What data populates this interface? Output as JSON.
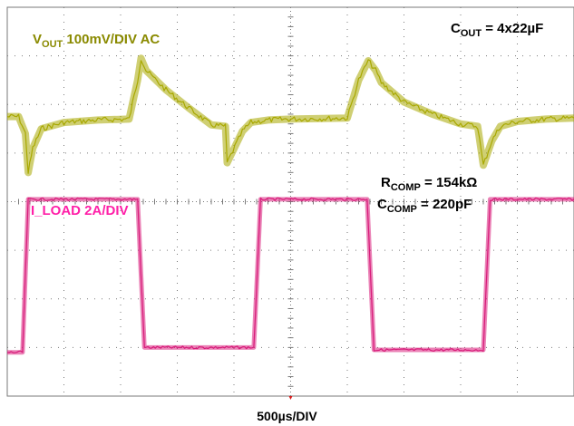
{
  "chart_data": {
    "type": "line",
    "title": "",
    "xlabel": "500µs/DIV",
    "ylabel": "",
    "x_divisions": 10,
    "y_divisions": 8,
    "grid": true,
    "time_per_div_us": 500,
    "series": [
      {
        "name": "V_OUT",
        "label_main": "V",
        "label_sub": "OUT",
        "label_rest": " 100mV/DIV AC",
        "color": "#a8a800",
        "units": "divisions",
        "x_div": [
          0.0,
          0.2,
          0.32,
          0.37,
          0.45,
          0.6,
          1.0,
          1.6,
          2.15,
          2.3,
          2.36,
          2.45,
          2.8,
          3.2,
          3.6,
          3.85,
          3.88,
          4.15,
          4.3,
          4.6,
          5.0,
          6.0,
          6.2,
          6.37,
          6.5,
          6.6,
          7.0,
          7.5,
          8.0,
          8.3,
          8.4,
          8.55,
          8.7,
          9.0,
          9.5,
          10.0
        ],
        "y_div": [
          5.75,
          5.75,
          5.4,
          4.6,
          5.1,
          5.5,
          5.63,
          5.68,
          5.7,
          6.5,
          6.95,
          6.7,
          6.3,
          5.93,
          5.58,
          5.55,
          4.8,
          5.45,
          5.63,
          5.68,
          5.7,
          5.72,
          6.5,
          6.9,
          6.7,
          6.45,
          6.05,
          5.8,
          5.6,
          5.55,
          4.75,
          5.25,
          5.55,
          5.65,
          5.7,
          5.72
        ]
      },
      {
        "name": "I_LOAD",
        "label_main": "I_LOAD 2A/DIV",
        "color": "#d81b7a",
        "units": "divisions",
        "x_div": [
          0.0,
          0.27,
          0.32,
          0.37,
          2.3,
          2.36,
          2.42,
          4.35,
          4.41,
          4.47,
          6.35,
          6.41,
          6.47,
          8.4,
          8.46,
          8.52,
          10.0
        ],
        "y_div": [
          0.9,
          0.9,
          2.5,
          4.05,
          4.05,
          2.5,
          1.0,
          1.0,
          2.5,
          4.05,
          4.05,
          2.5,
          0.95,
          0.95,
          2.5,
          4.05,
          4.05
        ]
      }
    ],
    "annotations": {
      "cout": {
        "main": "C",
        "sub": "OUT",
        "rest": " = 4x22µF"
      },
      "rcomp": {
        "main": "R",
        "sub": "COMP",
        "rest": " = 154kΩ"
      },
      "ccomp": {
        "main": "C",
        "sub": "COMP",
        "rest": " = 220pF"
      }
    }
  },
  "colors": {
    "grid": "#7a7a7a",
    "background": "#ffffff"
  }
}
